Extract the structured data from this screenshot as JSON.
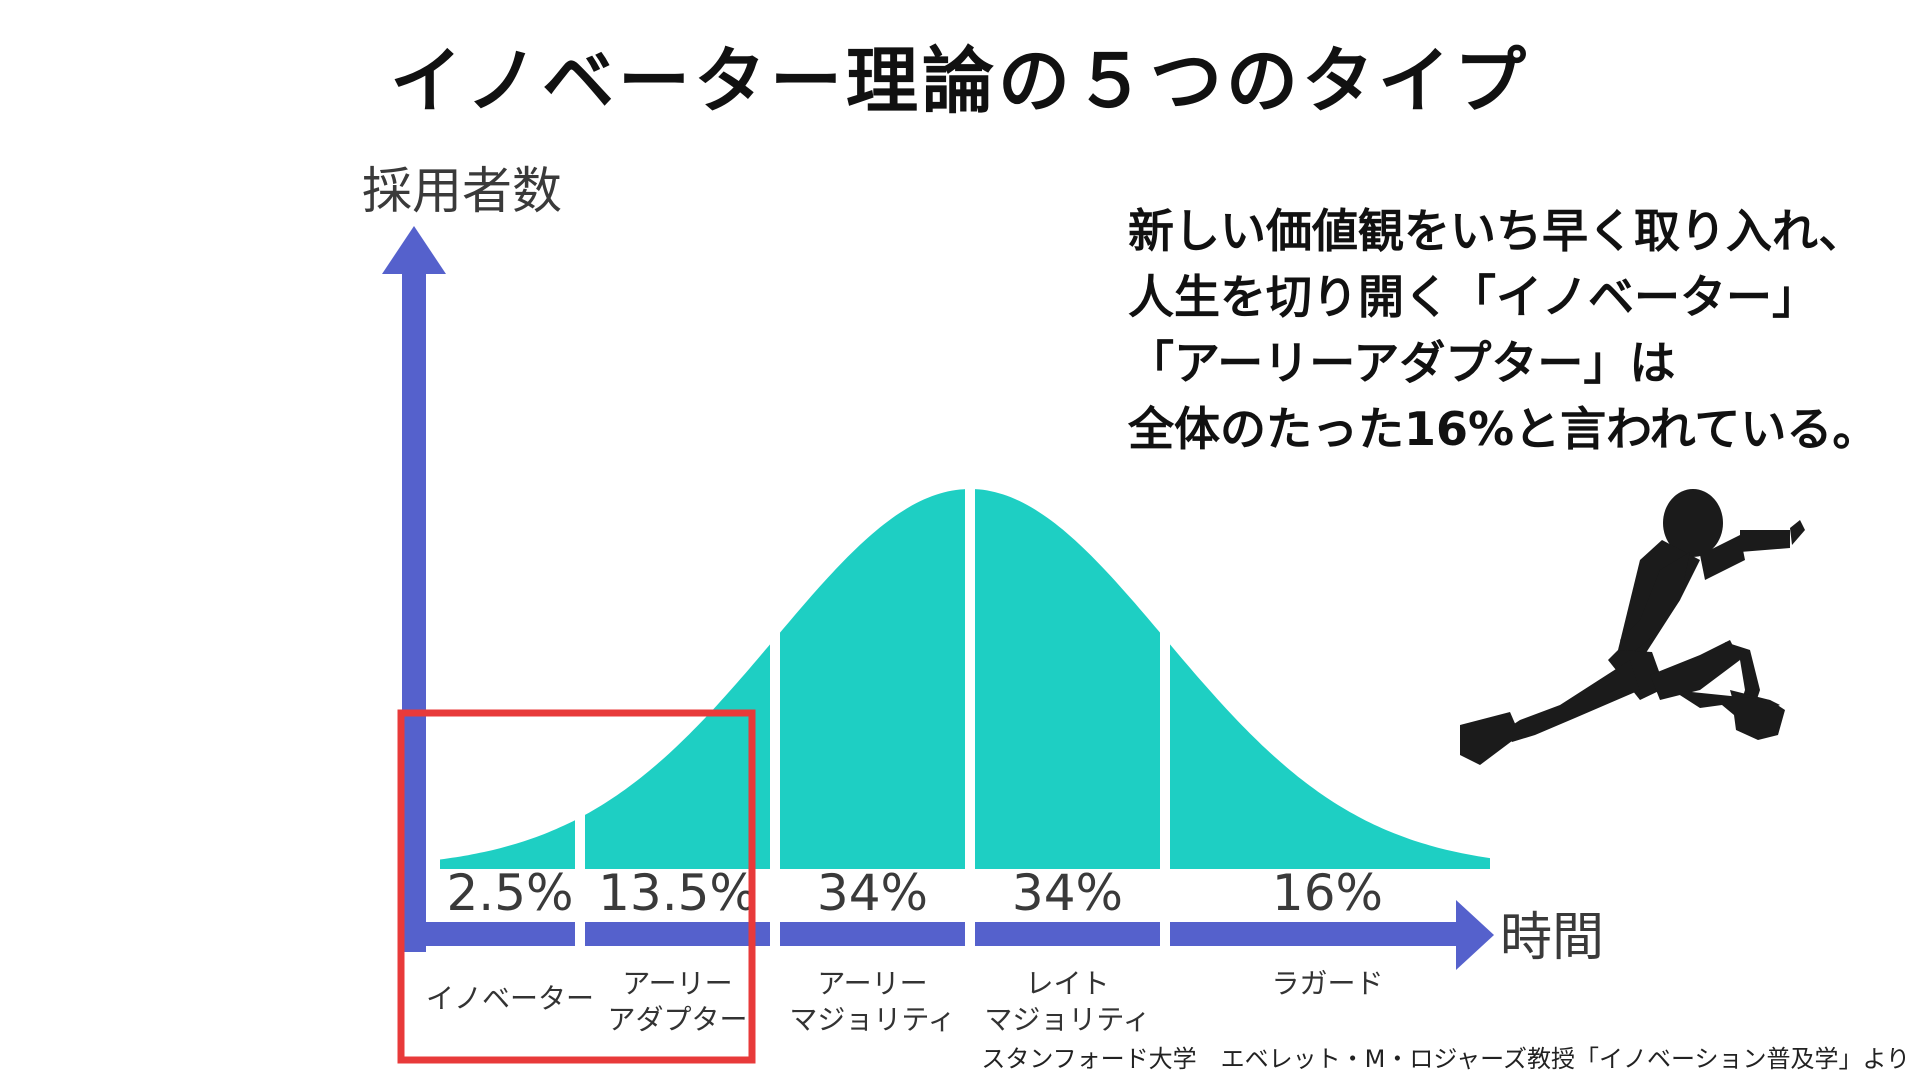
{
  "title": "イノベーター理論の５つのタイプ",
  "callout": [
    "新しい価値観をいち早く取り入れ、",
    "人生を切り開く「イノベーター」",
    "「アーリーアダプター」は",
    "全体のたった16%と言われている。"
  ],
  "source": "スタンフォード大学　エベレット・M・ロジャーズ教授「イノベーション普及学」より",
  "colors": {
    "curve": "#1ecfc3",
    "axis": "#5561cc",
    "highlight": "#e83a3a",
    "runner": "#1b1b1b"
  },
  "icons": [
    "runner-silhouette-icon"
  ],
  "chart_data": {
    "type": "area",
    "ylabel": "採用者数",
    "xlabel": "時間",
    "highlight": [
      "イノベーター",
      "アーリーアダプター"
    ],
    "series": [
      {
        "name": "イノベーター",
        "percent": "2.5%",
        "value": 2.5,
        "label_lines": [
          "イノベーター"
        ]
      },
      {
        "name": "アーリーアダプター",
        "percent": "13.5%",
        "value": 13.5,
        "label_lines": [
          "アーリー",
          "アダプター"
        ]
      },
      {
        "name": "アーリーマジョリティ",
        "percent": "34%",
        "value": 34,
        "label_lines": [
          "アーリー",
          "マジョリティ"
        ]
      },
      {
        "name": "レイトマジョリティ",
        "percent": "34%",
        "value": 34,
        "label_lines": [
          "レイト",
          "マジョリティ"
        ]
      },
      {
        "name": "ラガード",
        "percent": "16%",
        "value": 16,
        "label_lines": [
          "ラガード"
        ]
      }
    ]
  }
}
